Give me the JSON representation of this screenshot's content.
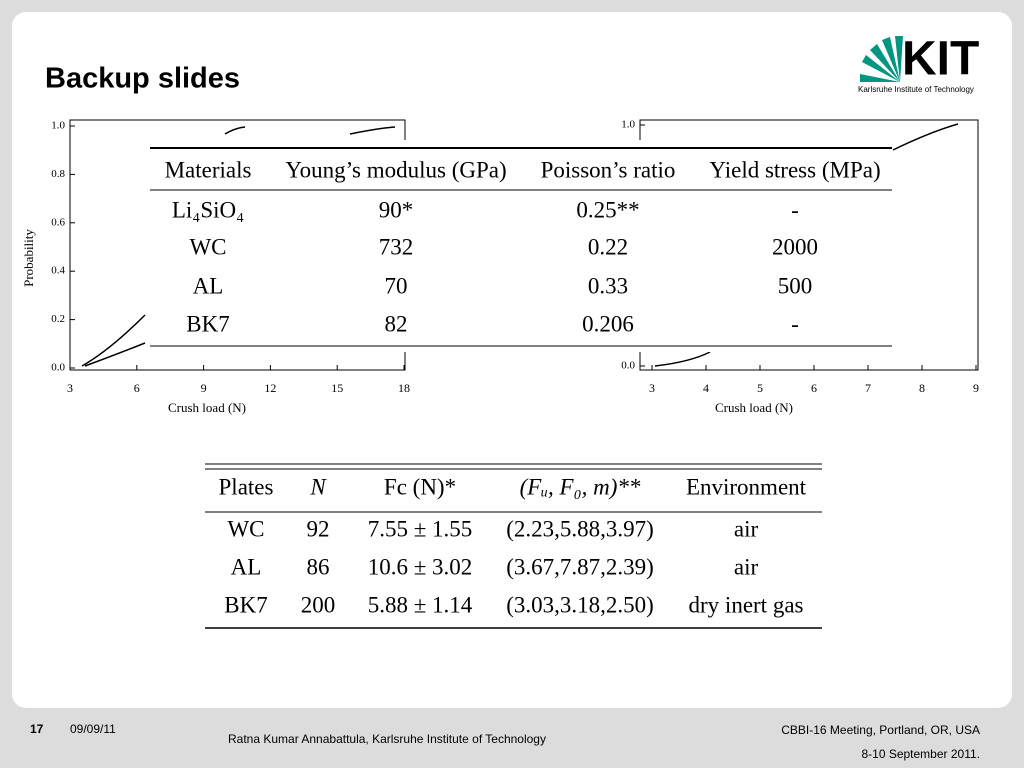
{
  "header": {
    "title": "Backup slides",
    "logo": {
      "mark": "KIT",
      "subtitle": "Karlsruhe Institute of Technology"
    }
  },
  "plots": [
    {
      "y_label": "Probability",
      "x_label": "Crush load (N)",
      "yticks": [
        "0.0",
        "0.2",
        "0.4",
        "0.6",
        "0.8",
        "1.0"
      ],
      "xticks": [
        "3",
        "6",
        "9",
        "12",
        "15",
        "18"
      ]
    },
    {
      "x_label": "Crush load (N)",
      "yticks": [
        "0.0",
        "1.0"
      ],
      "xticks": [
        "3",
        "4",
        "5",
        "6",
        "7",
        "8",
        "9"
      ]
    }
  ],
  "table1": {
    "headers": [
      "Materials",
      "Young’s modulus (GPa)",
      "Poisson’s ratio",
      "Yield stress (MPa)"
    ],
    "rows": [
      [
        "Li₄SiO₄",
        "90*",
        "0.25**",
        "-"
      ],
      [
        "WC",
        "732",
        "0.22",
        "2000"
      ],
      [
        "AL",
        "70",
        "0.33",
        "500"
      ],
      [
        "BK7",
        "82",
        "0.206",
        "-"
      ]
    ]
  },
  "table2": {
    "headers": [
      "Plates",
      "N",
      "Fc (N)*",
      "(Fᵤ, F₀, m)**",
      "Environment"
    ],
    "rows": [
      [
        "WC",
        "92",
        "7.55 ± 1.55",
        "(2.23,5.88,3.97)",
        "air"
      ],
      [
        "AL",
        "86",
        "10.6 ± 3.02",
        "(3.67,7.87,2.39)",
        "air"
      ],
      [
        "BK7",
        "200",
        "5.88 ± 1.14",
        "(3.03,3.18,2.50)",
        "dry inert gas"
      ]
    ]
  },
  "footer": {
    "page": "17",
    "date": "09/09/11",
    "author": "Ratna Kumar Annabattula, Karlsruhe Institute of Technology",
    "event": "CBBI-16 Meeting, Portland, OR, USA",
    "event_date": "8-10 September 2011."
  }
}
